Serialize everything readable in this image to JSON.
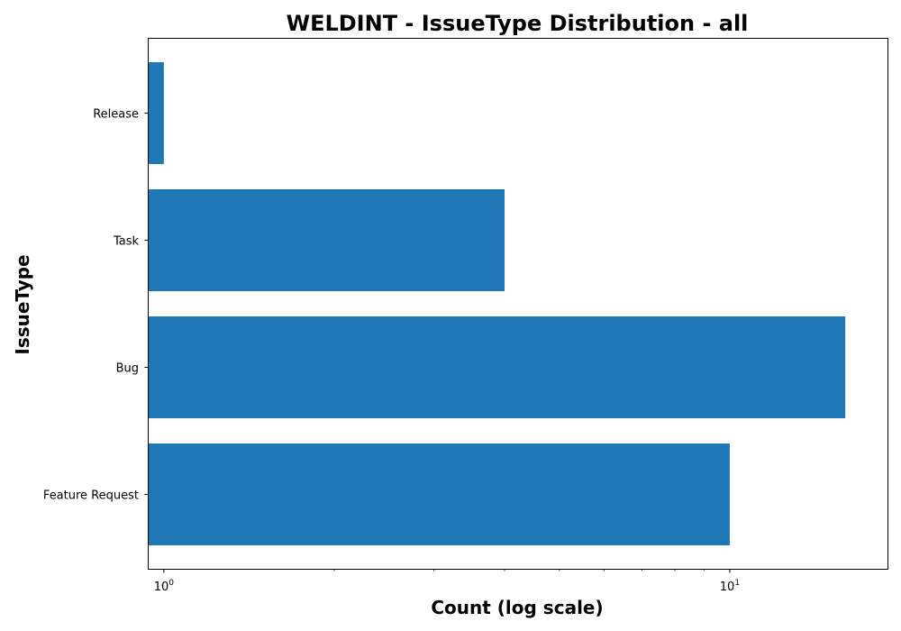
{
  "chart_data": {
    "type": "bar",
    "orientation": "horizontal",
    "title": "WELDINT - IssueType Distribution - all",
    "xlabel": "Count (log scale)",
    "ylabel": "IssueType",
    "x_scale": "log",
    "xlim": [
      0.94,
      19.0
    ],
    "categories": [
      "Release",
      "Task",
      "Bug",
      "Feature Request"
    ],
    "values": [
      1,
      4,
      16,
      10
    ],
    "bar_color": "#1f77b4",
    "x_major_ticks": [
      {
        "value": 1,
        "base": "10",
        "exponent": "0"
      },
      {
        "value": 10,
        "base": "10",
        "exponent": "1"
      }
    ],
    "grid": false,
    "legend": "none"
  }
}
